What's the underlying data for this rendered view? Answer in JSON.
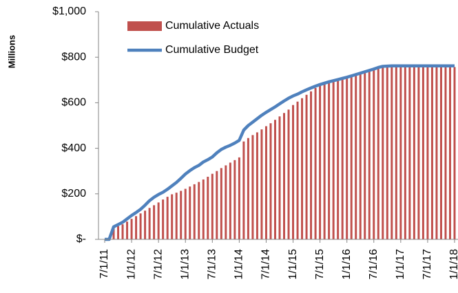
{
  "chart_data": {
    "type": "combo",
    "y_axis_label": "Millions",
    "categories": [
      "7/1/11",
      null,
      null,
      null,
      null,
      null,
      "1/1/12",
      null,
      null,
      null,
      null,
      null,
      "7/1/12",
      null,
      null,
      null,
      null,
      null,
      "1/1/13",
      null,
      null,
      null,
      null,
      null,
      "7/1/13",
      null,
      null,
      null,
      null,
      null,
      "1/1/14",
      null,
      null,
      null,
      null,
      null,
      "7/1/14",
      null,
      null,
      null,
      null,
      null,
      "1/1/15",
      null,
      null,
      null,
      null,
      null,
      "7/1/15",
      null,
      null,
      null,
      null,
      null,
      "1/1/16",
      null,
      null,
      null,
      null,
      null,
      "7/1/16",
      null,
      null,
      null,
      null,
      null,
      "1/1/17",
      null,
      null,
      null,
      null,
      null,
      "7/1/17",
      null,
      null,
      null,
      null,
      null,
      "1/1/18"
    ],
    "series": [
      {
        "name": "Cumulative Actuals",
        "type": "bar",
        "color": "#c0504d",
        "values": [
          0,
          0,
          50,
          58,
          66,
          78,
          90,
          102,
          114,
          126,
          138,
          150,
          162,
          175,
          187,
          198,
          205,
          213,
          222,
          232,
          242,
          252,
          263,
          275,
          288,
          300,
          313,
          325,
          337,
          348,
          360,
          430,
          445,
          458,
          470,
          483,
          497,
          510,
          525,
          540,
          555,
          570,
          590,
          605,
          620,
          635,
          650,
          665,
          675,
          683,
          690,
          695,
          700,
          706,
          712,
          718,
          724,
          730,
          736,
          742,
          748,
          752,
          755,
          756,
          757,
          757,
          757,
          757,
          757,
          757,
          757,
          757,
          757,
          757,
          757,
          757,
          757,
          757,
          757
        ]
      },
      {
        "name": "Cumulative Budget",
        "type": "line",
        "color": "#4f81bd",
        "values": [
          0,
          0,
          55,
          65,
          75,
          90,
          105,
          118,
          132,
          150,
          170,
          185,
          197,
          207,
          220,
          235,
          250,
          268,
          287,
          302,
          315,
          325,
          340,
          350,
          362,
          380,
          395,
          405,
          413,
          423,
          435,
          480,
          500,
          515,
          530,
          545,
          558,
          570,
          582,
          595,
          608,
          620,
          630,
          638,
          648,
          657,
          665,
          673,
          680,
          686,
          692,
          697,
          702,
          707,
          712,
          718,
          724,
          730,
          736,
          742,
          748,
          755,
          760,
          761,
          762,
          762,
          762,
          762,
          762,
          762,
          762,
          762,
          762,
          762,
          762,
          762,
          762,
          762,
          762
        ]
      }
    ],
    "ylim": [
      0,
      1000
    ],
    "yticks": [
      {
        "value": 0,
        "label": "$-"
      },
      {
        "value": 200,
        "label": "$200"
      },
      {
        "value": 400,
        "label": "$400"
      },
      {
        "value": 600,
        "label": "$600"
      },
      {
        "value": 800,
        "label": "$800"
      },
      {
        "value": 1000,
        "label": "$1,000"
      }
    ],
    "grid": false,
    "legend": "upper-left"
  }
}
